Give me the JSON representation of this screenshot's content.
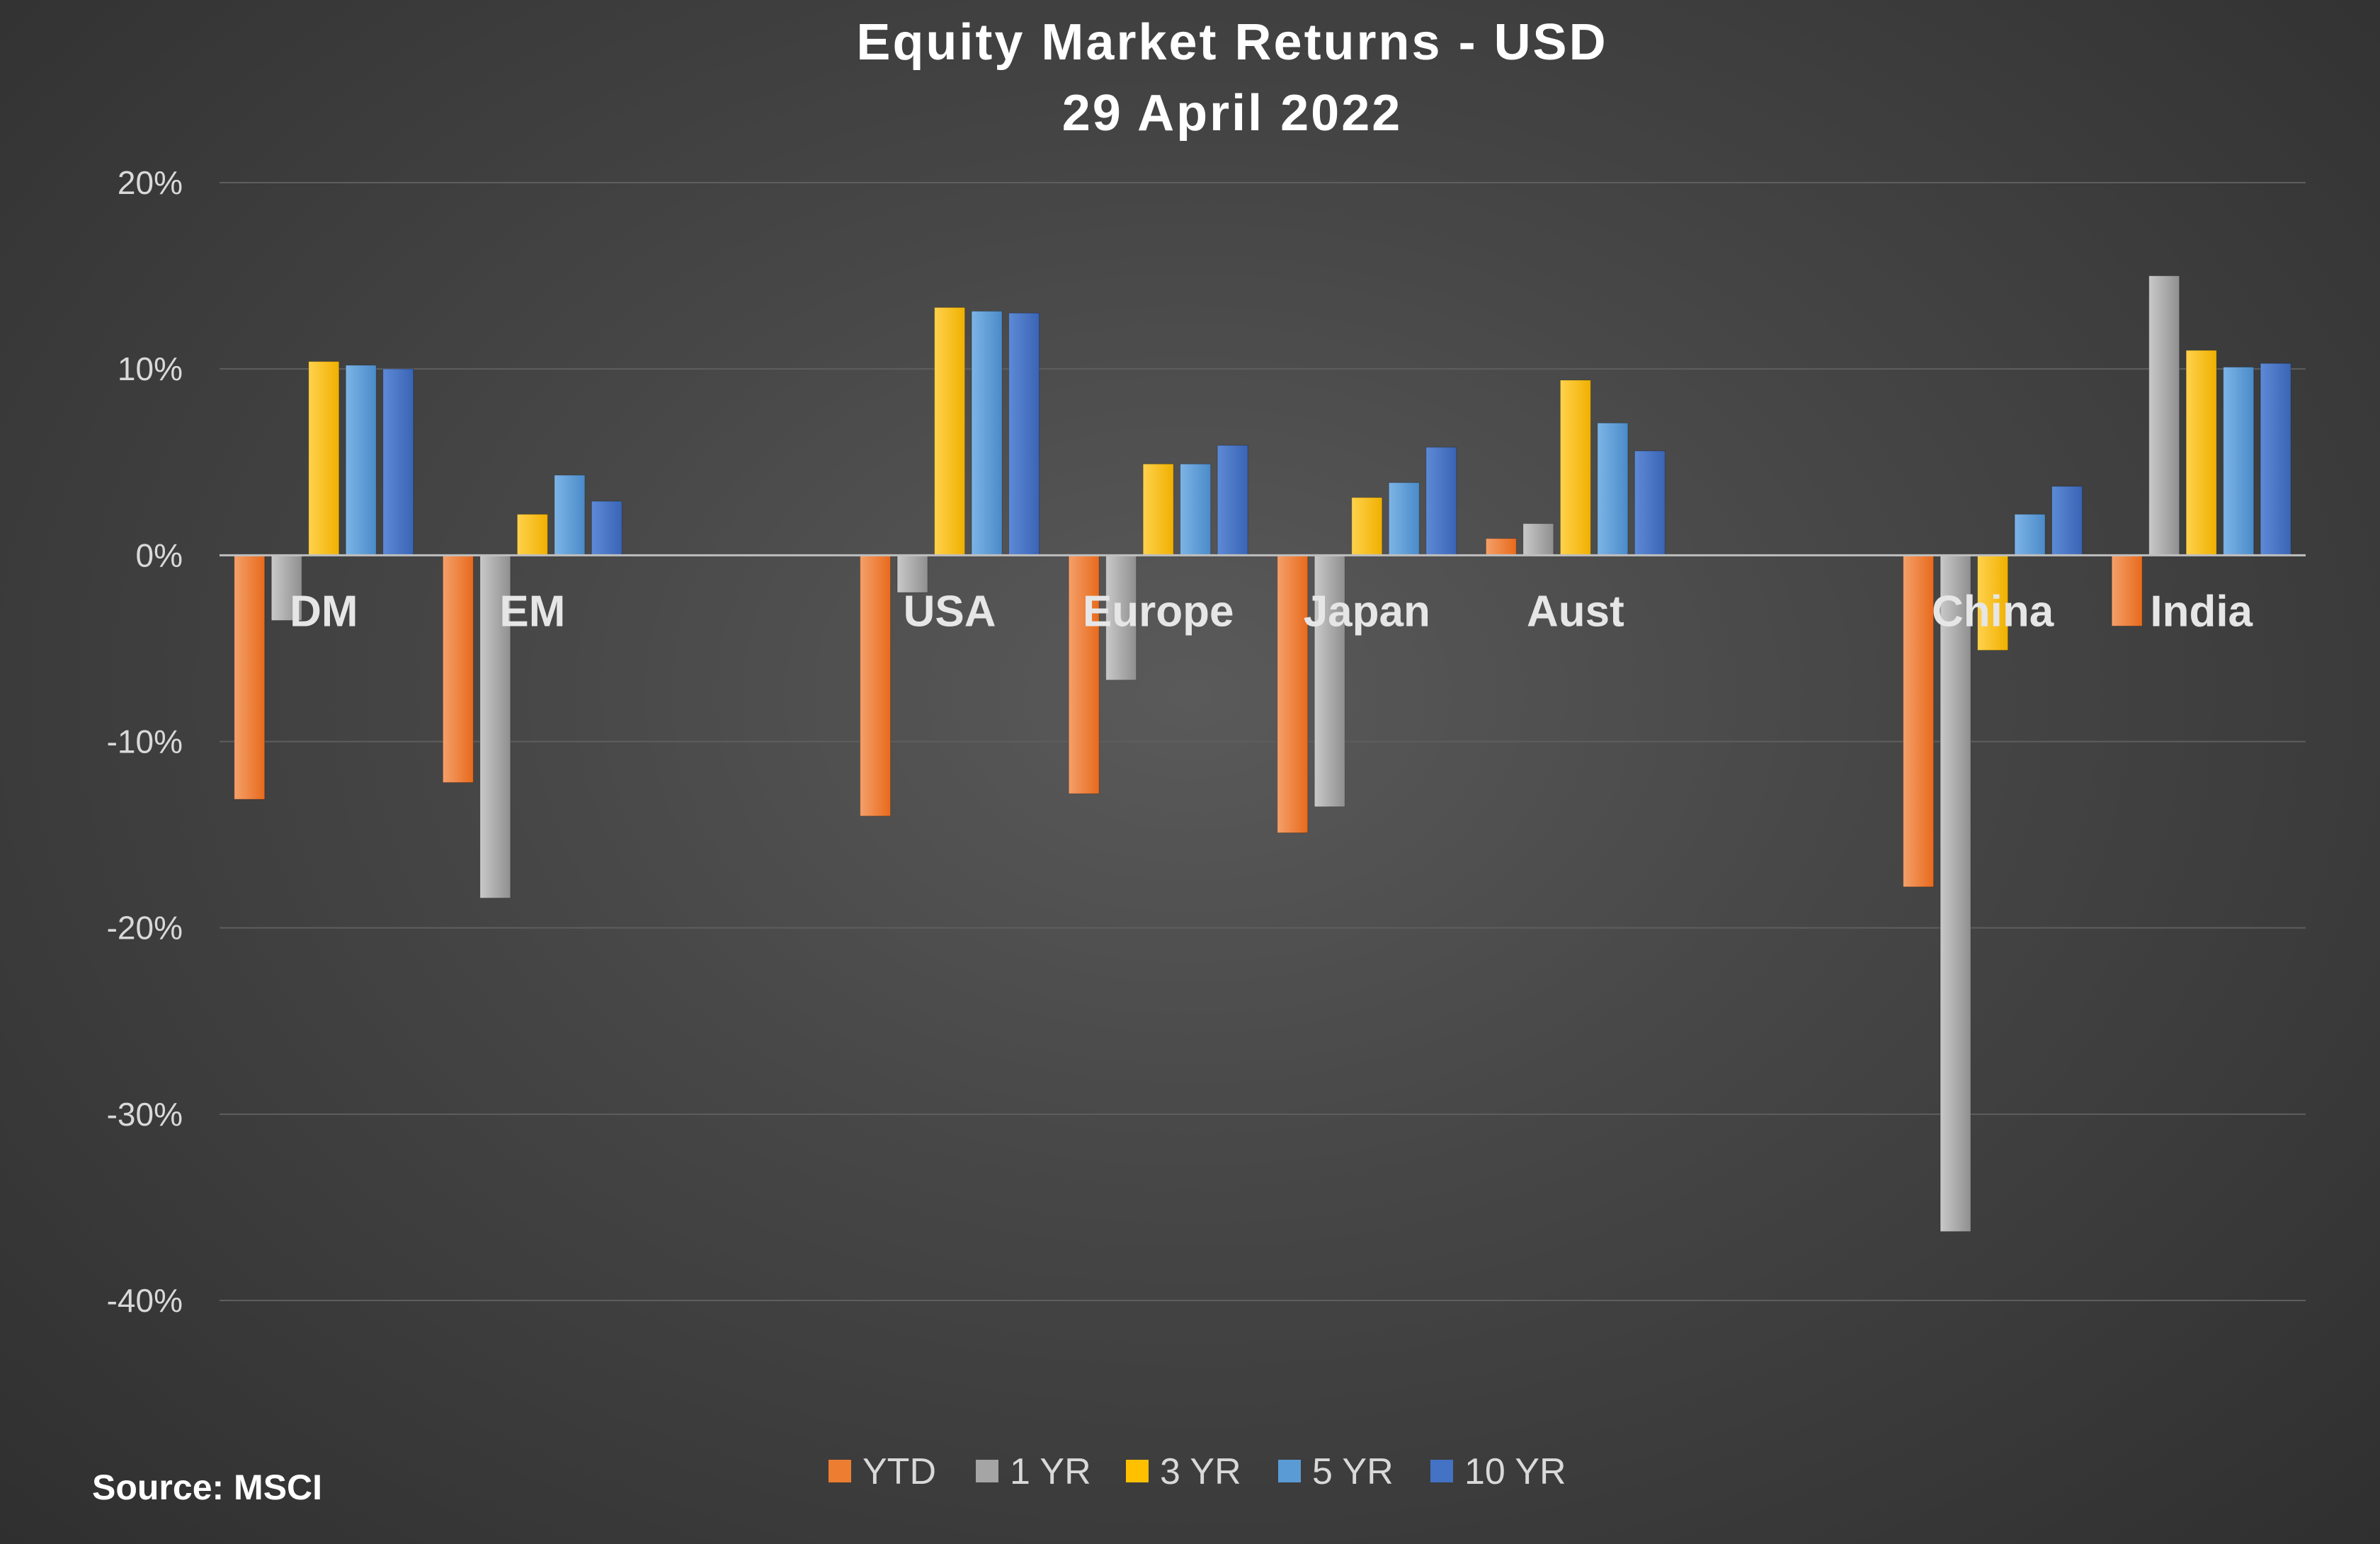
{
  "title": "Equity Market Returns - USD",
  "subtitle": "29 April 2022",
  "source": "Source: MSCI",
  "chart_data": {
    "type": "bar",
    "title": "Equity Market Returns - USD",
    "subtitle": "29 April 2022",
    "xlabel": "",
    "ylabel": "",
    "ylim": [
      -45,
      20
    ],
    "yticks": [
      20,
      10,
      0,
      -10,
      -20,
      -30,
      -40
    ],
    "ytick_labels": [
      "20%",
      "10%",
      "0%",
      "-10%",
      "-20%",
      "-30%",
      "-40%"
    ],
    "grid": true,
    "legend_position": "bottom",
    "categories": [
      "DM",
      "EM",
      "",
      "USA",
      "Europe",
      "Japan",
      "Aust",
      "",
      "China",
      "India"
    ],
    "series": [
      {
        "name": "YTD",
        "color": "#ed7d31",
        "values": [
          -13.1,
          -12.2,
          null,
          -14.0,
          -12.8,
          -14.9,
          0.9,
          null,
          -17.8,
          -3.8
        ]
      },
      {
        "name": "1 YR",
        "color": "#a5a5a5",
        "values": [
          -3.5,
          -18.4,
          null,
          -2.0,
          -6.7,
          -13.5,
          1.7,
          null,
          -36.3,
          15.0
        ]
      },
      {
        "name": "3 YR",
        "color": "#ffc000",
        "values": [
          10.4,
          2.2,
          null,
          13.3,
          4.9,
          3.1,
          9.4,
          null,
          -5.1,
          11.0
        ]
      },
      {
        "name": "5 YR",
        "color": "#5b9bd5",
        "values": [
          10.2,
          4.3,
          null,
          13.1,
          4.9,
          3.9,
          7.1,
          null,
          2.2,
          10.1
        ]
      },
      {
        "name": "10 YR",
        "color": "#4472c4",
        "values": [
          10.0,
          2.9,
          null,
          13.0,
          5.9,
          5.8,
          5.6,
          null,
          3.7,
          10.3
        ]
      }
    ]
  }
}
